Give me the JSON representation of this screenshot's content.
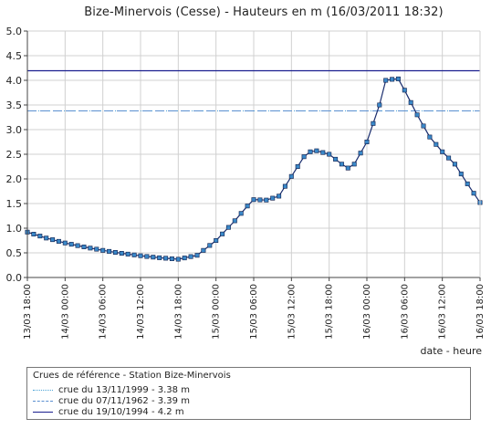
{
  "title": "Bize-Minervois (Cesse) - Hauteurs en m (16/03/2011 18:32)",
  "colors": {
    "series_line": "#1a2d6e",
    "marker_fill": "#3a88c8",
    "marker_stroke": "#0f1d4a",
    "crue_1999": "#4ba3d6",
    "crue_1962": "#5a8fd0",
    "crue_1994": "#1a1f8f"
  },
  "legend": {
    "title": "Crues de référence - Station Bize-Minervois",
    "items": [
      {
        "label": "crue du 13/11/1999 - 3.38 m",
        "style": "dotted",
        "color_key": "crue_1999"
      },
      {
        "label": "crue du 07/11/1962 - 3.39 m",
        "style": "dashed",
        "color_key": "crue_1962"
      },
      {
        "label": "crue du 19/10/1994 - 4.2 m",
        "style": "solid",
        "color_key": "crue_1994"
      }
    ]
  },
  "chart_data": {
    "type": "line",
    "title": "Bize-Minervois (Cesse) - Hauteurs en m (16/03/2011 18:32)",
    "xlabel": "date - heure",
    "ylabel": "",
    "ylim": [
      0,
      5
    ],
    "yticks": [
      "0.0",
      "0.5",
      "1.0",
      "1.5",
      "2.0",
      "2.5",
      "3.0",
      "3.5",
      "4.0",
      "4.5",
      "5.0"
    ],
    "xlim": [
      "13/03 18:00",
      "16/03 18:00"
    ],
    "xticks": [
      "13/03 18:00",
      "14/03 00:00",
      "14/03 06:00",
      "14/03 12:00",
      "14/03 18:00",
      "15/03 00:00",
      "15/03 06:00",
      "15/03 12:00",
      "15/03 18:00",
      "16/03 00:00",
      "16/03 06:00",
      "16/03 12:00",
      "16/03 18:00"
    ],
    "grid": true,
    "reference_lines": [
      {
        "label": "crue du 13/11/1999 - 3.38 m",
        "value": 3.38,
        "style": "dotted"
      },
      {
        "label": "crue du 07/11/1962 - 3.39 m",
        "value": 3.39,
        "style": "dashed"
      },
      {
        "label": "crue du 19/10/1994 - 4.2 m",
        "value": 4.2,
        "style": "solid"
      }
    ],
    "series": [
      {
        "x": [
          "13/03 18:00",
          "13/03 21:00",
          "14/03 00:00",
          "14/03 03:00",
          "14/03 06:00",
          "14/03 09:00",
          "14/03 12:00",
          "14/03 15:00",
          "14/03 18:00",
          "14/03 21:00",
          "15/03 00:00",
          "15/03 03:00",
          "15/03 05:00",
          "15/03 06:00",
          "15/03 08:00",
          "15/03 10:00",
          "15/03 12:00",
          "15/03 14:00",
          "15/03 15:00",
          "15/03 16:00",
          "15/03 18:00",
          "15/03 20:00",
          "15/03 21:00",
          "15/03 22:00",
          "16/03 00:00",
          "16/03 02:00",
          "16/03 03:00",
          "16/03 04:00",
          "16/03 05:00",
          "16/03 06:00",
          "16/03 08:00",
          "16/03 10:00",
          "16/03 12:00",
          "16/03 14:00",
          "16/03 16:00",
          "16/03 18:00"
        ],
        "values": [
          0.92,
          0.8,
          0.7,
          0.62,
          0.55,
          0.49,
          0.44,
          0.4,
          0.37,
          0.45,
          0.75,
          1.15,
          1.45,
          1.58,
          1.57,
          1.65,
          2.05,
          2.45,
          2.55,
          2.57,
          2.5,
          2.3,
          2.22,
          2.3,
          2.75,
          3.5,
          4.0,
          4.02,
          4.03,
          3.8,
          3.3,
          2.85,
          2.55,
          2.3,
          1.9,
          1.52
        ]
      }
    ]
  }
}
